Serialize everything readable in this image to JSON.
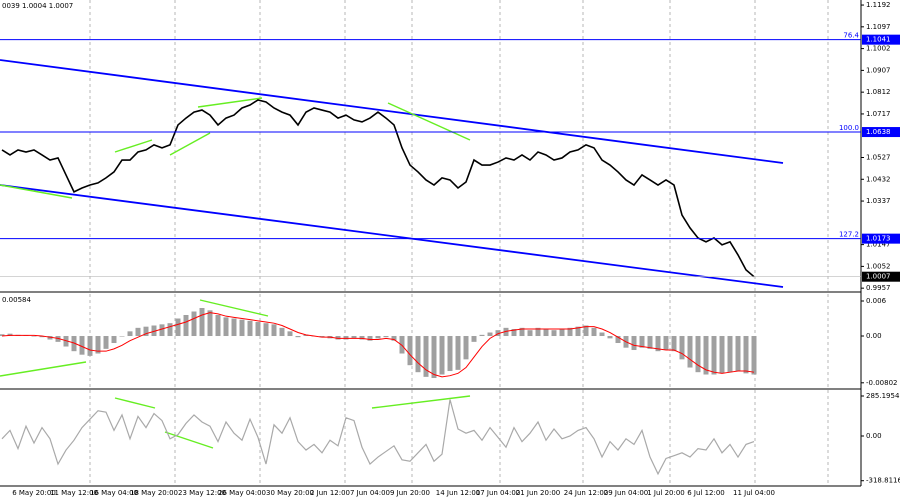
{
  "info": "0039 1.0004 1.0007",
  "chart_data": [
    {
      "type": "line",
      "color": "#000000",
      "categories": [
        null,
        null,
        null,
        null,
        "6 May 20:00",
        null,
        null,
        null,
        null,
        "11 May 12:00",
        null,
        null,
        null,
        null,
        "16 May 04:00",
        null,
        null,
        null,
        null,
        "18 May 20:00",
        null,
        null,
        null,
        null,
        null,
        "23 May 12:00",
        null,
        null,
        null,
        null,
        "26 May 04:00",
        null,
        null,
        null,
        null,
        null,
        "30 May 20:00",
        null,
        null,
        null,
        null,
        "2 Jun 12:00",
        null,
        null,
        null,
        null,
        "7 Jun 04:00",
        null,
        null,
        null,
        null,
        "9 Jun 20:00",
        null,
        null,
        null,
        null,
        null,
        "14 Jun 12:00",
        null,
        null,
        null,
        null,
        "17 Jun 04:00",
        null,
        null,
        null,
        null,
        "21 Jun 20:00",
        null,
        null,
        null,
        null,
        null,
        "24 Jun 12:00",
        null,
        null,
        null,
        null,
        "29 Jun 04:00",
        null,
        null,
        null,
        null,
        "1 Jul 20:00",
        null,
        null,
        null,
        null,
        "6 Jul 12:00",
        null,
        null,
        null,
        null,
        null,
        "11 Jul 04:00"
      ],
      "values": [
        1.056,
        1.0538,
        1.056,
        1.0551,
        1.056,
        1.0538,
        1.0516,
        1.0525,
        1.0451,
        1.0377,
        1.0394,
        1.0407,
        1.0416,
        1.0438,
        1.0464,
        1.0516,
        1.0516,
        1.0551,
        1.056,
        1.0582,
        1.0569,
        1.0582,
        1.0669,
        1.0699,
        1.0725,
        1.0734,
        1.0712,
        1.0669,
        1.0699,
        1.0712,
        1.0743,
        1.0756,
        1.0778,
        1.0769,
        1.0743,
        1.0725,
        1.0712,
        1.0669,
        1.0725,
        1.0743,
        1.0734,
        1.0725,
        1.0699,
        1.0712,
        1.0691,
        1.0682,
        1.0699,
        1.0725,
        1.0699,
        1.0669,
        1.0569,
        1.0494,
        1.0464,
        1.0429,
        1.0407,
        1.0438,
        1.0429,
        1.0394,
        1.042,
        1.0516,
        1.0494,
        1.0494,
        1.0507,
        1.0525,
        1.0516,
        1.0538,
        1.0516,
        1.0551,
        1.0538,
        1.0516,
        1.0525,
        1.0551,
        1.056,
        1.0582,
        1.0569,
        1.0516,
        1.0494,
        1.0464,
        1.0429,
        1.0407,
        1.0451,
        1.0429,
        1.0407,
        1.0429,
        1.0407,
        1.0276,
        1.022,
        1.0176,
        1.0159,
        1.0176,
        1.0146,
        1.0159,
        1.0102,
        1.0037,
        1.0007
      ],
      "ylim": [
        0.9949,
        1.1214
      ],
      "yticks": [
        1.1192,
        1.1097,
        1.1002,
        1.0907,
        1.0812,
        1.0717,
        1.0527,
        1.0432,
        1.0337,
        1.0147,
        1.0052,
        0.9957
      ],
      "levels": [
        {
          "name": "76.4",
          "value": 1.1041
        },
        {
          "name": "100.0",
          "value": 1.0638
        },
        {
          "name": "127.2",
          "value": 1.0173
        }
      ],
      "level_color": "#0000ff"
    },
    {
      "type": "macd",
      "label": "0.00584",
      "histogram": {
        "color": "#a0a0a0",
        "values": [
          0.0003,
          0.0004,
          0.0002,
          0.0001,
          0.0,
          -0.0002,
          -0.0006,
          -0.001,
          -0.0018,
          -0.0026,
          -0.0032,
          -0.0034,
          -0.003,
          -0.0022,
          -0.0012,
          0.0,
          0.0008,
          0.0014,
          0.0016,
          0.0018,
          0.002,
          0.0022,
          0.003,
          0.0036,
          0.0042,
          0.0048,
          0.0044,
          0.0036,
          0.0032,
          0.003,
          0.0028,
          0.0026,
          0.0024,
          0.0022,
          0.002,
          0.0014,
          0.0008,
          -0.0002,
          0.0002,
          0.0,
          -0.0002,
          -0.0004,
          -0.0006,
          -0.0006,
          -0.0004,
          -0.0006,
          -0.0008,
          -0.0004,
          -0.0002,
          -0.0008,
          -0.003,
          -0.005,
          -0.0062,
          -0.007,
          -0.0072,
          -0.0066,
          -0.006,
          -0.0058,
          -0.004,
          -0.001,
          0.0002,
          0.0006,
          0.001,
          0.0014,
          0.0012,
          0.0014,
          0.001,
          0.0014,
          0.0012,
          0.001,
          0.0012,
          0.0014,
          0.0016,
          0.0018,
          0.0014,
          0.0006,
          -0.0004,
          -0.0012,
          -0.002,
          -0.0024,
          -0.002,
          -0.0022,
          -0.0026,
          -0.0024,
          -0.0026,
          -0.004,
          -0.0054,
          -0.0062,
          -0.0066,
          -0.0066,
          -0.0064,
          -0.0062,
          -0.006,
          -0.0064,
          -0.0066
        ]
      },
      "signal": {
        "color": "#ff0000",
        "values": [
          0.0,
          0.0001,
          0.0001,
          0.0001,
          0.0001,
          0.0,
          -0.0002,
          -0.0004,
          -0.0008,
          -0.0012,
          -0.0018,
          -0.0024,
          -0.0026,
          -0.0026,
          -0.0022,
          -0.0016,
          -0.0008,
          -0.0002,
          0.0004,
          0.0008,
          0.0012,
          0.0016,
          0.002,
          0.0024,
          0.003,
          0.0036,
          0.004,
          0.0038,
          0.0034,
          0.0032,
          0.003,
          0.0028,
          0.0026,
          0.0024,
          0.0022,
          0.0018,
          0.0012,
          0.0006,
          0.0002,
          0.0,
          -0.0002,
          -0.0002,
          -0.0004,
          -0.0004,
          -0.0004,
          -0.0004,
          -0.0006,
          -0.0006,
          -0.0004,
          -0.0006,
          -0.0016,
          -0.0032,
          -0.0046,
          -0.0058,
          -0.0066,
          -0.007,
          -0.0068,
          -0.0064,
          -0.0054,
          -0.0036,
          -0.0018,
          -0.0004,
          0.0004,
          0.0008,
          0.001,
          0.0012,
          0.0012,
          0.0012,
          0.0012,
          0.0012,
          0.0012,
          0.0012,
          0.0014,
          0.0016,
          0.0016,
          0.0012,
          0.0006,
          -0.0002,
          -0.001,
          -0.0016,
          -0.0018,
          -0.002,
          -0.0022,
          -0.0024,
          -0.0024,
          -0.003,
          -0.004,
          -0.005,
          -0.0058,
          -0.0062,
          -0.0064,
          -0.0062,
          -0.006,
          -0.006,
          -0.0062
        ]
      },
      "ylim": [
        -0.00891,
        0.00703
      ],
      "yticks": [
        0.006,
        {
          "value": 0,
          "label": "0.00"
        },
        -0.00802
      ]
    },
    {
      "type": "line",
      "color": "#a9a9a9",
      "values": [
        -20,
        40,
        -90,
        70,
        -50,
        60,
        -20,
        -200,
        -100,
        -30,
        60,
        120,
        180,
        170,
        40,
        150,
        -20,
        140,
        60,
        160,
        110,
        -20,
        10,
        90,
        150,
        100,
        70,
        -40,
        100,
        20,
        -30,
        120,
        -10,
        -200,
        80,
        20,
        130,
        -40,
        -100,
        -60,
        -120,
        -30,
        -70,
        130,
        110,
        -80,
        -200,
        -150,
        -110,
        -70,
        -170,
        -180,
        -120,
        -60,
        -180,
        -130,
        260,
        50,
        20,
        40,
        -30,
        60,
        -10,
        -80,
        60,
        -40,
        20,
        100,
        -30,
        50,
        -20,
        0,
        40,
        60,
        -20,
        -150,
        -40,
        -100,
        -20,
        -60,
        40,
        -150,
        -270,
        -160,
        -140,
        -120,
        -150,
        -90,
        -100,
        -20,
        -120,
        -60,
        -150,
        -60,
        -40
      ],
      "ylim": [
        -385,
        328
      ],
      "yticks": [
        285.1954,
        {
          "value": 0,
          "label": "0.00"
        },
        -318.8116
      ]
    }
  ]
}
